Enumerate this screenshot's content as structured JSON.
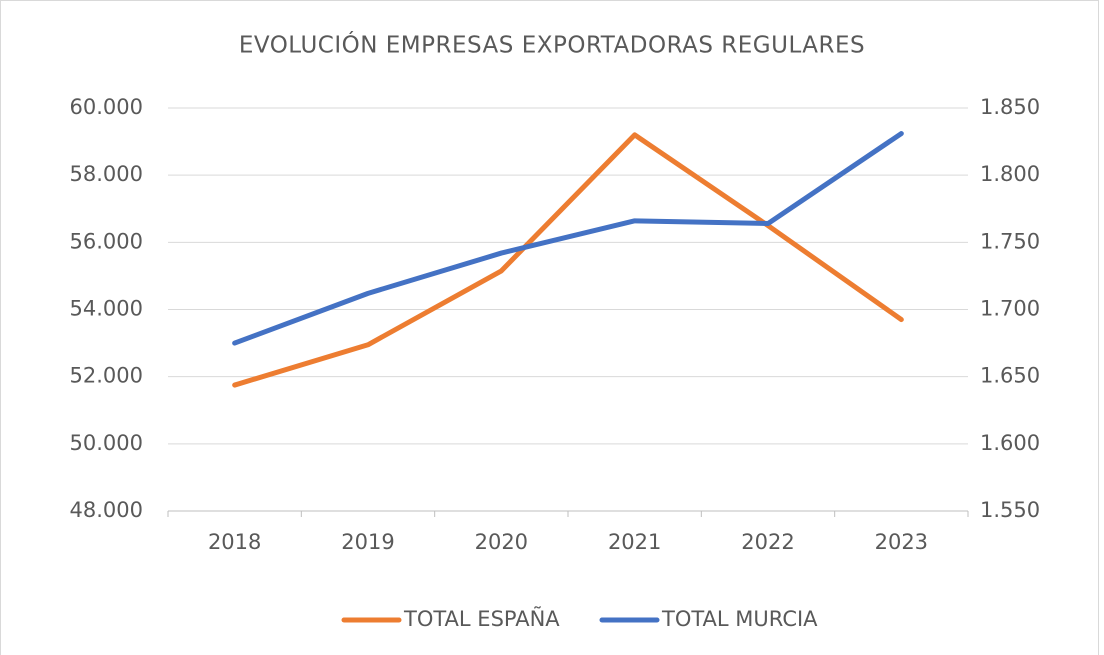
{
  "chart_data": {
    "type": "line",
    "title": "EVOLUCIÓN EMPRESAS EXPORTADORAS REGULARES",
    "categories": [
      "2018",
      "2019",
      "2020",
      "2021",
      "2022",
      "2023"
    ],
    "series": [
      {
        "name": "TOTAL ESPAÑA",
        "color": "#ed7d31",
        "values": [
          51750,
          52950,
          55150,
          59200,
          56500,
          53700
        ]
      },
      {
        "name": "TOTAL MURCIA",
        "color": "#4472c4",
        "axis": "y2",
        "values": [
          1675,
          1712,
          1742,
          1766,
          1764,
          1831
        ]
      }
    ],
    "ylim": [
      48000,
      60000
    ],
    "yticks": [
      {
        "value": 48000,
        "label": "48.000"
      },
      {
        "value": 50000,
        "label": "50.000"
      },
      {
        "value": 52000,
        "label": "52.000"
      },
      {
        "value": 54000,
        "label": "54.000"
      },
      {
        "value": 56000,
        "label": "56.000"
      },
      {
        "value": 58000,
        "label": "58.000"
      },
      {
        "value": 60000,
        "label": "60.000"
      }
    ],
    "y2lim": [
      1550,
      1850
    ],
    "y2ticks": [
      {
        "value": 1550,
        "label": "1.550"
      },
      {
        "value": 1600,
        "label": "1.600"
      },
      {
        "value": 1650,
        "label": "1.650"
      },
      {
        "value": 1700,
        "label": "1.700"
      },
      {
        "value": 1750,
        "label": "1.750"
      },
      {
        "value": 1800,
        "label": "1.800"
      },
      {
        "value": 1850,
        "label": "1.850"
      }
    ],
    "grid": true,
    "legend": "bottom"
  }
}
